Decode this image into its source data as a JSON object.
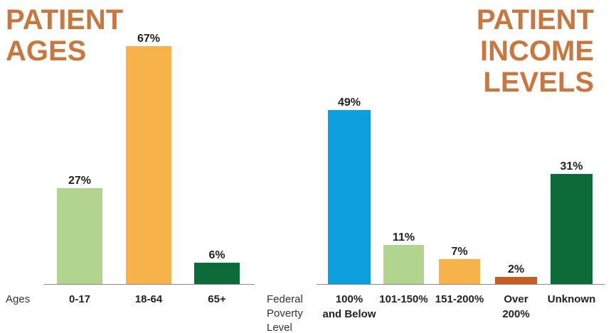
{
  "chart_data": [
    {
      "type": "bar",
      "title": "PATIENT\nAGES",
      "xlabel": "Ages",
      "ylabel": "",
      "categories": [
        "0-17",
        "18-64",
        "65+"
      ],
      "values": [
        27,
        67,
        6
      ],
      "value_labels": [
        "27%",
        "67%",
        "6%"
      ],
      "colors": [
        "#b1d58e",
        "#f8b24a",
        "#0d6b3a"
      ],
      "ylim": [
        0,
        100
      ],
      "grid": false
    },
    {
      "type": "bar",
      "title": "PATIENT\nINCOME\nLEVELS",
      "xlabel": "Federal\nPoverty\nLevel",
      "ylabel": "",
      "categories": [
        "100%\nand Below",
        "101-150%",
        "151-200%",
        "Over\n200%",
        "Unknown"
      ],
      "values": [
        49,
        11,
        7,
        2,
        31
      ],
      "value_labels": [
        "49%",
        "11%",
        "7%",
        "2%",
        "31%"
      ],
      "colors": [
        "#0d9edd",
        "#b1d58e",
        "#f8b24a",
        "#c45e24",
        "#0d6b3a"
      ],
      "ylim": [
        0,
        100
      ],
      "grid": false
    }
  ],
  "colors": {
    "title": "#c8773f",
    "axis": "#888888",
    "text": "#222222"
  }
}
